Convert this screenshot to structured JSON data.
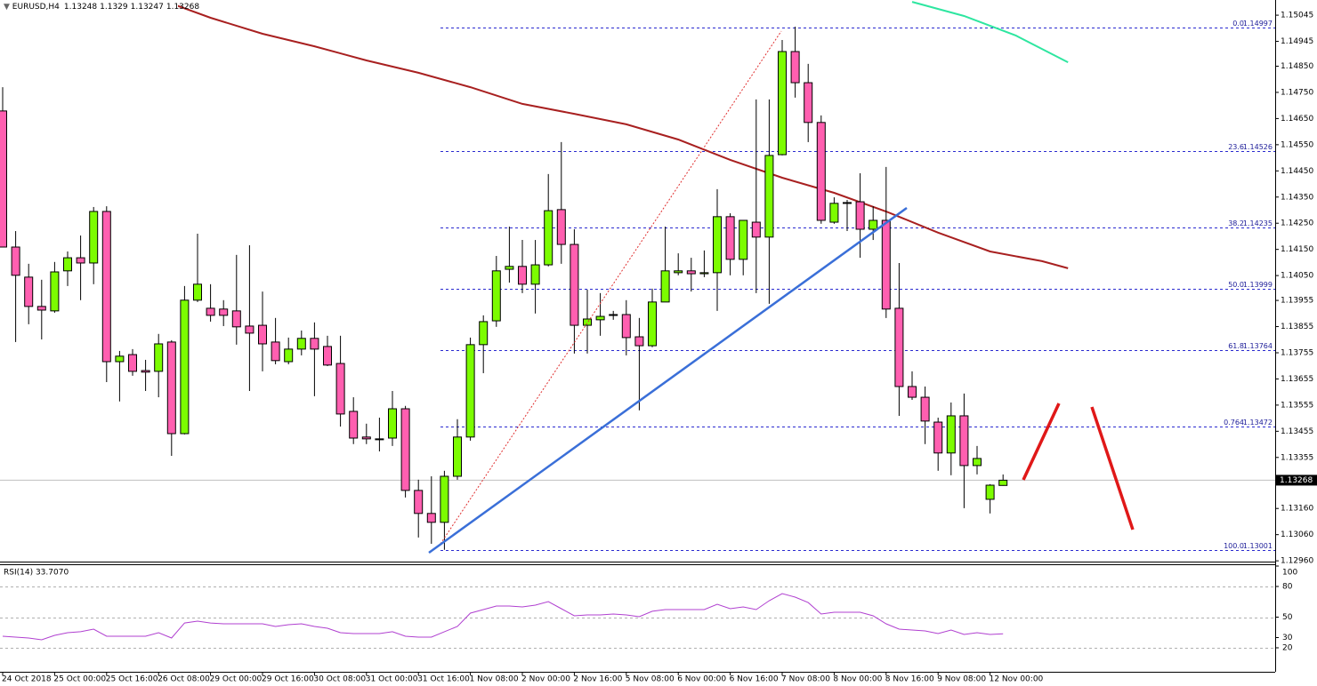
{
  "chart_data": [
    {
      "type": "candlestick",
      "title": "EURUSD,H4",
      "categories": [
        "24 Oct 2018",
        null,
        null,
        null,
        "25 Oct 00:00",
        null,
        null,
        null,
        "25 Oct 16:00",
        null,
        null,
        null,
        "26 Oct 08:00",
        null,
        null,
        null,
        "29 Oct 00:00",
        null,
        null,
        null,
        "29 Oct 16:00",
        null,
        null,
        null,
        "30 Oct 08:00",
        null,
        null,
        null,
        "31 Oct 00:00",
        null,
        null,
        null,
        "31 Oct 16:00",
        null,
        null,
        null,
        "1 Nov 08:00",
        null,
        null,
        null,
        "2 Nov 00:00",
        null,
        null,
        null,
        "2 Nov 16:00",
        null,
        null,
        null,
        "5 Nov 08:00",
        null,
        null,
        null,
        "6 Nov 00:00",
        null,
        null,
        null,
        "6 Nov 16:00",
        null,
        null,
        null,
        "7 Nov 08:00",
        null,
        null,
        null,
        "8 Nov 00:00",
        null,
        null,
        null,
        "8 Nov 16:00",
        null,
        null,
        null,
        "9 Nov 08:00",
        null,
        null,
        null,
        "12 Nov 00:00",
        null
      ],
      "series": [
        {
          "up_color": "#7cfc00",
          "down_color": "#ff5fb0",
          "open": [
            1.14679,
            1.14159,
            1.14044,
            1.13932,
            1.13915,
            1.14068,
            1.14118,
            1.14098,
            1.14295,
            1.13721,
            1.13748,
            1.13687,
            1.13684,
            1.13796,
            1.13446,
            1.13956,
            1.13925,
            1.13922,
            1.13915,
            1.13857,
            1.1386,
            1.13796,
            1.13721,
            1.13769,
            1.1381,
            1.13779,
            1.13714,
            1.13531,
            1.13433,
            1.13426,
            1.13429,
            1.13541,
            1.13229,
            1.13141,
            1.13107,
            1.13283,
            1.13433,
            1.13786,
            1.13877,
            1.14074,
            1.14085,
            1.14017,
            1.14091,
            1.14302,
            1.14169,
            1.1386,
            1.13881,
            1.13898,
            1.13901,
            1.13816,
            1.13782,
            1.13949,
            1.14061,
            1.14068,
            1.14057,
            1.14061,
            1.14275,
            1.14112,
            1.14254,
            1.14197,
            1.14512,
            1.14906,
            1.14787,
            1.14635,
            1.14254,
            1.14326,
            1.14332,
            1.14227,
            1.14261,
            1.13925,
            1.13626,
            1.13585,
            1.1349,
            1.13372,
            1.13514,
            1.13324,
            1.13195,
            1.13248
          ],
          "high": [
            1.1477,
            1.1422,
            1.14095,
            1.14034,
            1.14102,
            1.14142,
            1.14203,
            1.14312,
            1.14315,
            1.13762,
            1.13769,
            1.13728,
            1.13827,
            1.13803,
            1.1401,
            1.1421,
            1.14017,
            1.13956,
            1.14129,
            1.14166,
            1.13989,
            1.13888,
            1.13813,
            1.1384,
            1.13871,
            1.1382,
            1.1382,
            1.13585,
            1.13484,
            1.13507,
            1.13609,
            1.13552,
            1.1327,
            1.13283,
            1.13304,
            1.13501,
            1.13813,
            1.13898,
            1.14125,
            1.14237,
            1.14186,
            1.14186,
            1.14438,
            1.1456,
            1.14227,
            1.13996,
            1.13983,
            1.13915,
            1.13956,
            1.13888,
            1.14,
            1.14237,
            1.14135,
            1.14118,
            1.14146,
            1.1438,
            1.14288,
            1.14261,
            1.14723,
            1.14723,
            1.1495,
            1.15001,
            1.14859,
            1.14662,
            1.14349,
            1.14339,
            1.14441,
            1.14315,
            1.14465,
            1.14098,
            1.13684,
            1.13626,
            1.13507,
            1.13565,
            1.13599,
            1.13399,
            1.13253,
            1.1329
          ],
          "low": [
            1.14159,
            1.13796,
            1.13864,
            1.13806,
            1.13908,
            1.1401,
            1.13956,
            1.14017,
            1.13643,
            1.13569,
            1.13667,
            1.13609,
            1.13585,
            1.13361,
            1.13443,
            1.13949,
            1.13874,
            1.13857,
            1.13786,
            1.13609,
            1.13684,
            1.13711,
            1.13711,
            1.13745,
            1.13589,
            1.13704,
            1.13473,
            1.13406,
            1.13406,
            1.13378,
            1.13399,
            1.13202,
            1.13049,
            1.13025,
            1.13002,
            1.1327,
            1.13419,
            1.13677,
            1.13854,
            1.14023,
            1.13983,
            1.13905,
            1.14085,
            1.14095,
            1.13752,
            1.13752,
            1.1382,
            1.13881,
            1.13745,
            1.13535,
            1.13776,
            1.13949,
            1.14051,
            1.13989,
            1.14044,
            1.13915,
            1.14051,
            1.14051,
            1.13983,
            1.13942,
            1.14509,
            1.1473,
            1.1456,
            1.14248,
            1.14248,
            1.1422,
            1.14118,
            1.14186,
            1.13888,
            1.13514,
            1.13575,
            1.13406,
            1.13304,
            1.13287,
            1.13161,
            1.1329,
            1.13141,
            1.13247
          ],
          "close": [
            1.14159,
            1.14051,
            1.13932,
            1.13918,
            1.14064,
            1.14118,
            1.14098,
            1.14295,
            1.13721,
            1.13742,
            1.13684,
            1.13681,
            1.13789,
            1.13446,
            1.13956,
            1.14017,
            1.13898,
            1.13898,
            1.13854,
            1.1383,
            1.13789,
            1.13725,
            1.13769,
            1.1381,
            1.13769,
            1.13708,
            1.13521,
            1.13429,
            1.13426,
            1.13426,
            1.13541,
            1.13229,
            1.13141,
            1.13107,
            1.13283,
            1.13433,
            1.13786,
            1.13874,
            1.14068,
            1.14085,
            1.14017,
            1.14091,
            1.14298,
            1.14169,
            1.1386,
            1.13884,
            1.13894,
            1.13901,
            1.13813,
            1.13782,
            1.13949,
            1.14068,
            1.14068,
            1.14057,
            1.14061,
            1.14275,
            1.14112,
            1.14261,
            1.14197,
            1.14509,
            1.14906,
            1.14787,
            1.14635,
            1.14261,
            1.14326,
            1.14329,
            1.14227,
            1.14261,
            1.13922,
            1.13626,
            1.13585,
            1.13494,
            1.13372,
            1.13514,
            1.13324,
            1.13351,
            1.13249,
            1.13268
          ]
        }
      ],
      "moving_averages": [
        {
          "color": "#a82020",
          "x": [
            13,
            16,
            20,
            24,
            28,
            32,
            36,
            40,
            44,
            48,
            52,
            56,
            60,
            64,
            68,
            72,
            76,
            80,
            82
          ],
          "values": [
            1.15089,
            1.15035,
            1.14974,
            1.14926,
            1.14872,
            1.14825,
            1.1477,
            1.14706,
            1.14668,
            1.14628,
            1.1457,
            1.14492,
            1.14424,
            1.14366,
            1.14295,
            1.14214,
            1.14142,
            1.14105,
            1.14078
          ]
        },
        {
          "color": "#2ee6a0",
          "x": [
            70,
            74,
            78,
            82
          ],
          "values": [
            1.15096,
            1.15042,
            1.14967,
            1.14865
          ]
        }
      ],
      "fibonacci": [
        {
          "level": "0.0",
          "price": 1.14997
        },
        {
          "level": "23.6",
          "price": 1.14526
        },
        {
          "level": "38.2",
          "price": 1.14235
        },
        {
          "level": "50.0",
          "price": 1.13999
        },
        {
          "level": "61.8",
          "price": 1.13764
        },
        {
          "level": "0.764",
          "price": 1.13472
        },
        {
          "level": "100.0",
          "price": 1.13001
        }
      ],
      "fib_color": "#2a2ad0",
      "ylim": [
        1.12957,
        1.15103
      ],
      "yticks": [
        1.15045,
        1.14945,
        {
          "value": 1.1485,
          "label": "1.14850"
        },
        {
          "value": 1.1475,
          "label": "1.14750"
        },
        {
          "value": 1.1465,
          "label": "1.14650"
        },
        {
          "value": 1.1455,
          "label": "1.14550"
        },
        {
          "value": 1.1445,
          "label": "1.14450"
        },
        {
          "value": 1.1435,
          "label": "1.14350"
        },
        {
          "value": 1.1425,
          "label": "1.14250"
        },
        {
          "value": 1.1415,
          "label": "1.14150"
        },
        {
          "value": 1.1405,
          "label": "1.14050"
        },
        1.13955,
        1.13855,
        1.13755,
        1.13655,
        1.13555,
        1.13455,
        1.13355,
        {
          "value": 1.1316,
          "label": "1.13160"
        },
        {
          "value": 1.1306,
          "label": "1.13060"
        },
        {
          "value": 1.1296,
          "label": "1.12960"
        }
      ]
    },
    {
      "type": "line",
      "title": "RSI(14) 33.7070",
      "color": "#b040d0",
      "values": [
        31.3,
        30.4,
        29.6,
        27.8,
        32.2,
        34.8,
        35.7,
        38.3,
        31.3,
        31.3,
        31.3,
        31.3,
        34.8,
        29.6,
        44.3,
        46.1,
        44.3,
        43.5,
        43.5,
        43.5,
        43.5,
        40.9,
        42.6,
        43.5,
        40.9,
        39.1,
        34.8,
        33.9,
        33.9,
        33.9,
        35.7,
        31.3,
        30.4,
        30.4,
        35.7,
        40.9,
        53.9,
        57.4,
        60.9,
        60.9,
        60.0,
        61.7,
        65.2,
        58.3,
        51.3,
        52.2,
        52.2,
        53.0,
        52.2,
        50.4,
        55.7,
        57.4,
        57.4,
        57.4,
        57.4,
        62.6,
        58.3,
        60.0,
        57.4,
        66.1,
        73.0,
        69.6,
        64.3,
        53.0,
        54.8,
        54.8,
        54.8,
        51.3,
        43.5,
        38.3,
        37.4,
        36.5,
        33.9,
        37.4,
        33.0,
        34.8,
        33.0,
        33.707
      ],
      "ylim": [
        0,
        100
      ],
      "yticks": [
        100,
        80,
        50,
        30,
        20
      ],
      "levels": [
        80,
        50,
        20
      ]
    }
  ]
}
